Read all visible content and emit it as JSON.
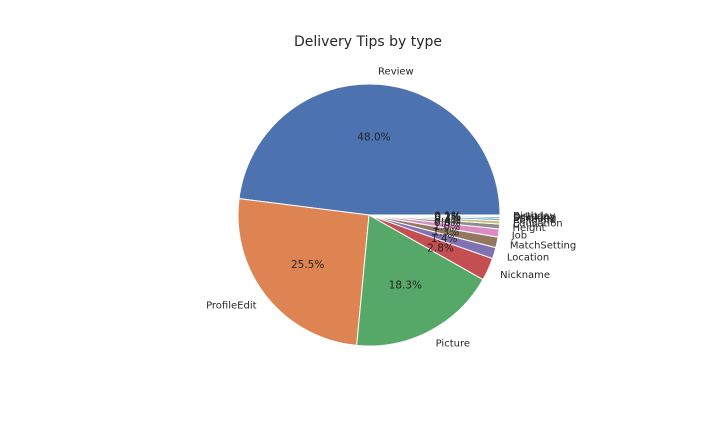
{
  "chart_data": {
    "type": "pie",
    "title": "Delivery Tips by type",
    "start_angle_deg": 0,
    "direction": "counterclockwise",
    "slices": [
      {
        "label": "Review",
        "value": 48.0,
        "pct_label": "48.0%",
        "color": "#4c72b0"
      },
      {
        "label": "ProfileEdit",
        "value": 25.5,
        "pct_label": "25.5%",
        "color": "#dd8452"
      },
      {
        "label": "Picture",
        "value": 18.3,
        "pct_label": "18.3%",
        "color": "#55a868"
      },
      {
        "label": "Nickname",
        "value": 2.8,
        "pct_label": "2.8%",
        "color": "#c44e52"
      },
      {
        "label": "Location",
        "value": 1.4,
        "pct_label": "1.4%",
        "color": "#8172b3"
      },
      {
        "label": "MatchSetting",
        "value": 1.3,
        "pct_label": "1.3%",
        "color": "#937860"
      },
      {
        "label": "Job",
        "value": 1.0,
        "pct_label": "1.0%",
        "color": "#da8bc3"
      },
      {
        "label": "Height",
        "value": 0.6,
        "pct_label": "0.6%",
        "color": "#8c8c8c"
      },
      {
        "label": "Education",
        "value": 0.4,
        "pct_label": "0.4%",
        "color": "#ccb974"
      },
      {
        "label": "Religion",
        "value": 0.3,
        "pct_label": "0.3%",
        "color": "#64b5cd"
      },
      {
        "label": "Smoking",
        "value": 0.2,
        "pct_label": "0.2%",
        "color": "#4c72b0"
      },
      {
        "label": "Drinking",
        "value": 0.1,
        "pct_label": "0.1%",
        "color": "#dd8452"
      },
      {
        "label": "Birthday",
        "value": 0.1,
        "pct_label": "0.1%",
        "color": "#55a868"
      }
    ]
  }
}
